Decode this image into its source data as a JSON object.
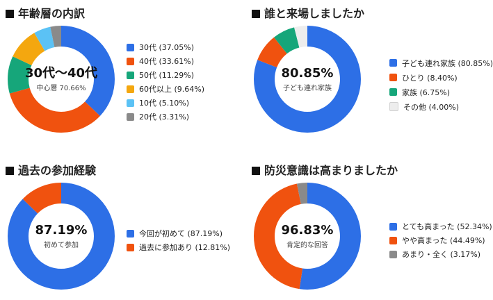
{
  "colors": {
    "blue": "#2D6FE6",
    "orange": "#F0520F",
    "green": "#16A67A",
    "amber": "#F4A70F",
    "sky": "#5BC2F5",
    "gray": "#8A8A8A",
    "light": "#EDEDED"
  },
  "chart_data": [
    {
      "id": "age",
      "type": "pie",
      "title": "年齢層の内訳",
      "center_big": "30代〜40代",
      "center_small": "中心層 70.66%",
      "slices": [
        {
          "label": "30代 (37.05%)",
          "value": 37.05,
          "color": "#2D6FE6"
        },
        {
          "label": "40代 (33.61%)",
          "value": 33.61,
          "color": "#F0520F"
        },
        {
          "label": "50代 (11.29%)",
          "value": 11.29,
          "color": "#16A67A"
        },
        {
          "label": "60代以上 (9.64%)",
          "value": 9.64,
          "color": "#F4A70F"
        },
        {
          "label": "10代 (5.10%)",
          "value": 5.1,
          "color": "#5BC2F5"
        },
        {
          "label": "20代 (3.31%)",
          "value": 3.31,
          "color": "#8A8A8A"
        }
      ]
    },
    {
      "id": "who",
      "type": "pie",
      "title": "誰と来場しましたか",
      "center_big": "80.85%",
      "center_small": "子ども連れ家族",
      "slices": [
        {
          "label": "子ども連れ家族 (80.85%)",
          "value": 80.85,
          "color": "#2D6FE6"
        },
        {
          "label": "ひとり (8.40%)",
          "value": 8.4,
          "color": "#F0520F"
        },
        {
          "label": "家族 (6.75%)",
          "value": 6.75,
          "color": "#16A67A"
        },
        {
          "label": "その他 (4.00%)",
          "value": 4.0,
          "color": "#EDEDED"
        }
      ]
    },
    {
      "id": "past",
      "type": "pie",
      "title": "過去の参加経験",
      "center_big": "87.19%",
      "center_small": "初めて参加",
      "slices": [
        {
          "label": "今回が初めて (87.19%)",
          "value": 87.19,
          "color": "#2D6FE6"
        },
        {
          "label": "過去に参加あり (12.81%)",
          "value": 12.81,
          "color": "#F0520F"
        }
      ]
    },
    {
      "id": "bosai",
      "type": "pie",
      "title": "防災意識は高まりましたか",
      "center_big": "96.83%",
      "center_small": "肯定的な回答",
      "slices": [
        {
          "label": "とても高まった (52.34%)",
          "value": 52.34,
          "color": "#2D6FE6"
        },
        {
          "label": "やや高まった (44.49%)",
          "value": 44.49,
          "color": "#F0520F"
        },
        {
          "label": "あまり・全く (3.17%)",
          "value": 3.17,
          "color": "#8A8A8A"
        }
      ]
    }
  ]
}
